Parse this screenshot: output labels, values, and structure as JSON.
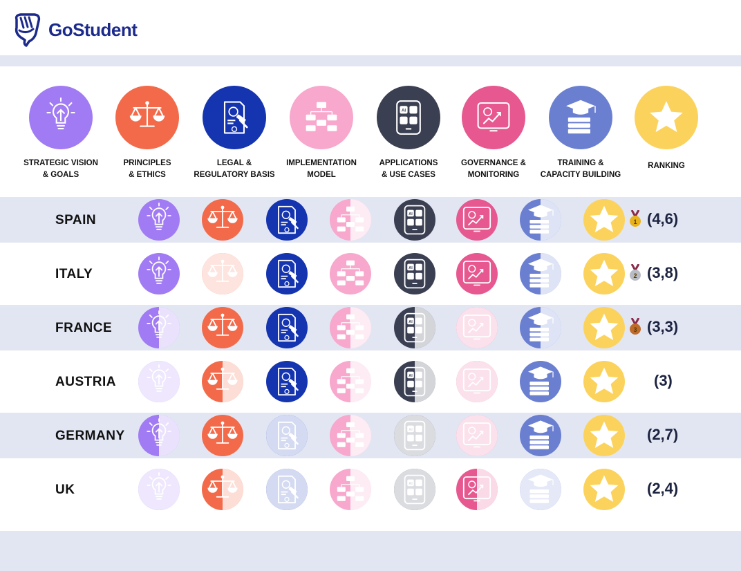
{
  "brand": {
    "name": "GoStudent",
    "color": "#1c2a8c"
  },
  "categories": [
    {
      "key": "vision",
      "label": "STRATEGIC VISION\n& GOALS",
      "icon": "lightbulb-icon",
      "color": "#a17bf3"
    },
    {
      "key": "ethics",
      "label": "PRINCIPLES\n& ETHICS",
      "icon": "scales-icon",
      "color": "#f26a4a"
    },
    {
      "key": "legal",
      "label": "LEGAL &\nREGULATORY BASIS",
      "icon": "gavel-document-icon",
      "color": "#1534b0"
    },
    {
      "key": "impl",
      "label": "IMPLEMENTATION\nMODEL",
      "icon": "flowchart-icon",
      "color": "#f7a8cc"
    },
    {
      "key": "apps",
      "label": "APPLICATIONS\n& USE CASES",
      "icon": "ai-tablet-icon",
      "color": "#3b3f52"
    },
    {
      "key": "gov",
      "label": "GOVERNANCE &\nMONITORING",
      "icon": "monitor-chart-icon",
      "color": "#e6588f"
    },
    {
      "key": "train",
      "label": "TRAINING &\nCAPACITY BUILDING",
      "icon": "graduation-books-icon",
      "color": "#6b7fd1"
    },
    {
      "key": "rank",
      "label": "RANKING",
      "icon": "star-icon",
      "color": "#fbd35c"
    }
  ],
  "rows": [
    {
      "country": "SPAIN",
      "score": "(4,6)",
      "medal": "gold",
      "medal_num": "1",
      "levels": [
        1,
        1,
        1,
        0.5,
        1,
        1,
        0.5,
        1
      ]
    },
    {
      "country": "ITALY",
      "score": "(3,8)",
      "medal": "silver",
      "medal_num": "2",
      "levels": [
        1,
        0,
        1,
        1,
        1,
        1,
        0.5,
        1
      ]
    },
    {
      "country": "FRANCE",
      "score": "(3,3)",
      "medal": "bronze",
      "medal_num": "3",
      "levels": [
        0.5,
        1,
        1,
        0.5,
        0.5,
        0,
        0.5,
        1
      ]
    },
    {
      "country": "AUSTRIA",
      "score": "(3)",
      "medal": "",
      "medal_num": "",
      "levels": [
        0,
        0.5,
        1,
        0.5,
        0.5,
        0,
        1,
        1
      ]
    },
    {
      "country": "GERMANY",
      "score": "(2,7)",
      "medal": "",
      "medal_num": "",
      "levels": [
        0.5,
        1,
        0,
        0.5,
        0,
        0,
        1,
        1
      ]
    },
    {
      "country": "UK",
      "score": "(2,4)",
      "medal": "",
      "medal_num": "",
      "levels": [
        0,
        0.5,
        0,
        0.5,
        0,
        0.5,
        0,
        1
      ]
    }
  ]
}
